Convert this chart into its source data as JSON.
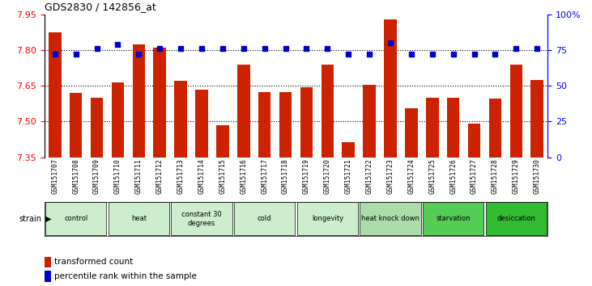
{
  "title": "GDS2830 / 142856_at",
  "samples": [
    "GSM151707",
    "GSM151708",
    "GSM151709",
    "GSM151710",
    "GSM151711",
    "GSM151712",
    "GSM151713",
    "GSM151714",
    "GSM151715",
    "GSM151716",
    "GSM151717",
    "GSM151718",
    "GSM151719",
    "GSM151720",
    "GSM151721",
    "GSM151722",
    "GSM151723",
    "GSM151724",
    "GSM151725",
    "GSM151726",
    "GSM151727",
    "GSM151728",
    "GSM151729",
    "GSM151730"
  ],
  "bar_values": [
    7.875,
    7.62,
    7.6,
    7.665,
    7.825,
    7.81,
    7.67,
    7.635,
    7.485,
    7.74,
    7.625,
    7.625,
    7.645,
    7.74,
    7.415,
    7.655,
    7.93,
    7.555,
    7.6,
    7.6,
    7.49,
    7.595,
    7.74,
    7.675
  ],
  "percentile_values": [
    72,
    72,
    76,
    79,
    72,
    76,
    76,
    76,
    76,
    76,
    76,
    76,
    76,
    76,
    72,
    72,
    80,
    72,
    72,
    72,
    72,
    72,
    76,
    76
  ],
  "bar_color": "#cc2200",
  "dot_color": "#0000cc",
  "ylim_left": [
    7.35,
    7.95
  ],
  "ylim_right": [
    0,
    100
  ],
  "yticks_left": [
    7.35,
    7.5,
    7.65,
    7.8,
    7.95
  ],
  "yticks_right": [
    0,
    25,
    50,
    75,
    100
  ],
  "ytick_labels_right": [
    "0",
    "25",
    "50",
    "75",
    "100%"
  ],
  "grid_values": [
    7.5,
    7.65,
    7.8
  ],
  "groups": [
    {
      "label": "control",
      "start": 0,
      "end": 2,
      "color": "#cceecc"
    },
    {
      "label": "heat",
      "start": 3,
      "end": 5,
      "color": "#cceecc"
    },
    {
      "label": "constant 30\ndegrees",
      "start": 6,
      "end": 8,
      "color": "#cceecc"
    },
    {
      "label": "cold",
      "start": 9,
      "end": 11,
      "color": "#cceecc"
    },
    {
      "label": "longevity",
      "start": 12,
      "end": 14,
      "color": "#cceecc"
    },
    {
      "label": "heat knock down",
      "start": 15,
      "end": 17,
      "color": "#aaddaa"
    },
    {
      "label": "starvation",
      "start": 18,
      "end": 20,
      "color": "#55cc55"
    },
    {
      "label": "desiccation",
      "start": 21,
      "end": 23,
      "color": "#33bb33"
    }
  ],
  "tick_bg_color": "#bbbbbb",
  "background_color": "#ffffff"
}
